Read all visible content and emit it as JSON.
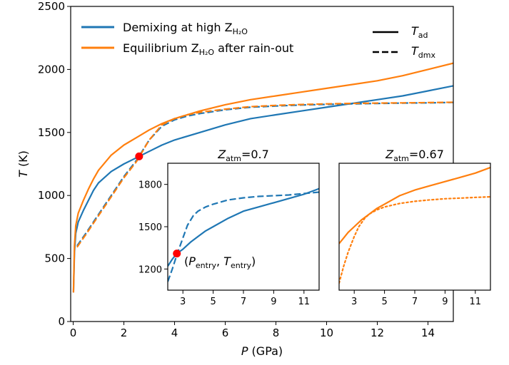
{
  "colors": {
    "blue": "#1f77b4",
    "orange": "#ff7f0e",
    "marker": "#ff0000",
    "black": "#000000"
  },
  "legend_left": [
    {
      "label": "Demixing at high Z",
      "sub": "H₂O",
      "color": "#1f77b4"
    },
    {
      "label": "Equilibrium Z",
      "sub": "H₂O",
      "suffix": " after rain-out",
      "color": "#ff7f0e"
    }
  ],
  "legend_right": [
    {
      "label": "T",
      "sub": "ad",
      "style": "solid"
    },
    {
      "label": "T",
      "sub": "dmx",
      "style": "dashed"
    }
  ],
  "chart_data": [
    {
      "type": "line",
      "xlabel": "P (GPa)",
      "xlabel_italic": "P",
      "xlabel_unit": " (GPa)",
      "ylabel": "T (K)",
      "ylabel_italic": "T",
      "ylabel_unit": " (K)",
      "xlim": [
        -0.1,
        15
      ],
      "ylim": [
        0,
        2500
      ],
      "xticks": [
        0,
        2,
        4,
        6,
        8,
        10,
        12,
        14
      ],
      "yticks": [
        0,
        500,
        1000,
        1500,
        2000,
        2500
      ],
      "series": [
        {
          "name": "Demixing at high Z_H2O (T_ad)",
          "color": "#1f77b4",
          "style": "solid",
          "x": [
            0.01,
            0.05,
            0.1,
            0.2,
            0.4,
            0.6,
            0.8,
            1.0,
            1.5,
            2.0,
            2.5,
            3.0,
            3.5,
            4.0,
            5.0,
            6.0,
            7.0,
            8.0,
            9.0,
            10.0,
            11.0,
            12.0,
            13.0,
            14.0,
            15.0
          ],
          "y": [
            230,
            550,
            700,
            790,
            880,
            960,
            1040,
            1100,
            1190,
            1250,
            1300,
            1350,
            1400,
            1440,
            1500,
            1560,
            1610,
            1640,
            1670,
            1700,
            1730,
            1760,
            1790,
            1830,
            1870
          ]
        },
        {
          "name": "Demixing at high Z_H2O (T_dmx)",
          "color": "#1f77b4",
          "style": "dashed",
          "x": [
            0.15,
            0.5,
            1.0,
            1.5,
            2.0,
            2.5,
            3.0,
            3.5,
            4.0,
            4.5,
            5.0,
            6.0,
            7.0,
            8.0,
            9.0,
            10.0,
            11.0,
            12.0,
            13.0,
            14.0,
            15.0
          ],
          "y": [
            600,
            700,
            850,
            1000,
            1150,
            1280,
            1440,
            1550,
            1600,
            1630,
            1650,
            1680,
            1700,
            1710,
            1718,
            1723,
            1727,
            1730,
            1733,
            1735,
            1738
          ]
        },
        {
          "name": "Equilibrium Z_H2O after rain-out (T_ad)",
          "color": "#ff7f0e",
          "style": "solid",
          "x": [
            0.01,
            0.05,
            0.1,
            0.2,
            0.4,
            0.6,
            0.8,
            1.0,
            1.5,
            2.0,
            2.5,
            3.0,
            3.5,
            4.0,
            5.0,
            6.0,
            7.0,
            8.0,
            9.0,
            10.0,
            11.0,
            12.0,
            13.0,
            14.0,
            15.0
          ],
          "y": [
            230,
            600,
            760,
            860,
            960,
            1050,
            1130,
            1200,
            1320,
            1400,
            1460,
            1520,
            1570,
            1610,
            1670,
            1720,
            1760,
            1790,
            1820,
            1850,
            1880,
            1910,
            1950,
            2000,
            2050
          ]
        },
        {
          "name": "Equilibrium Z_H2O after rain-out (T_dmx)",
          "color": "#ff7f0e",
          "style": "dashed",
          "x": [
            0.15,
            0.5,
            1.0,
            1.5,
            2.0,
            2.5,
            3.0,
            3.5,
            4.0,
            4.5,
            5.0,
            6.0,
            7.0,
            8.0,
            9.0,
            10.0,
            11.0,
            12.0,
            13.0,
            14.0,
            15.0
          ],
          "y": [
            590,
            690,
            840,
            990,
            1140,
            1270,
            1440,
            1560,
            1610,
            1640,
            1660,
            1685,
            1705,
            1715,
            1722,
            1727,
            1730,
            1733,
            1735,
            1737,
            1740
          ]
        }
      ],
      "marker": {
        "x": 2.6,
        "y": 1310,
        "color": "#ff0000"
      }
    },
    {
      "type": "line",
      "title_italic": "Z",
      "title_sub": "atm",
      "title_value": "=0.7",
      "xlim": [
        2,
        12
      ],
      "ylim": [
        1050,
        1950
      ],
      "xticks": [
        3,
        5,
        7,
        9,
        11
      ],
      "yticks": [
        1200,
        1500,
        1800
      ],
      "series": [
        {
          "name": "T_ad",
          "color": "#1f77b4",
          "style": "solid",
          "x": [
            2.0,
            2.3,
            2.6,
            3.0,
            3.5,
            4.0,
            4.5,
            5.0,
            6.0,
            7.0,
            8.0,
            9.0,
            10.0,
            11.0,
            12.0
          ],
          "y": [
            1220,
            1270,
            1310,
            1340,
            1390,
            1430,
            1470,
            1500,
            1560,
            1610,
            1640,
            1670,
            1700,
            1730,
            1770
          ]
        },
        {
          "name": "T_dmx",
          "color": "#1f77b4",
          "style": "dashed",
          "x": [
            2.0,
            2.3,
            2.6,
            3.0,
            3.3,
            3.7,
            4.0,
            4.5,
            5.0,
            6.0,
            7.0,
            8.0,
            9.0,
            10.0,
            11.0,
            12.0
          ],
          "y": [
            1110,
            1200,
            1300,
            1420,
            1510,
            1580,
            1610,
            1640,
            1660,
            1690,
            1705,
            1715,
            1720,
            1725,
            1735,
            1745
          ]
        }
      ],
      "marker": {
        "x": 2.6,
        "y": 1310,
        "color": "#ff0000"
      },
      "annotation": {
        "p": "P",
        "p_sub": "entry",
        "t": "T",
        "t_sub": "entry"
      }
    },
    {
      "type": "line",
      "title_italic": "Z",
      "title_sub": "atm",
      "title_value": "=0.67",
      "xlim": [
        2,
        12
      ],
      "ylim": [
        1050,
        1950
      ],
      "xticks": [
        3,
        5,
        7,
        9,
        11
      ],
      "yticks": [],
      "series": [
        {
          "name": "T_ad",
          "color": "#ff7f0e",
          "style": "solid",
          "x": [
            2.0,
            2.3,
            2.6,
            3.0,
            3.5,
            4.0,
            4.5,
            5.0,
            6.0,
            7.0,
            8.0,
            9.0,
            10.0,
            11.0,
            12.0
          ],
          "y": [
            1380,
            1420,
            1460,
            1500,
            1550,
            1590,
            1630,
            1660,
            1720,
            1760,
            1790,
            1820,
            1850,
            1880,
            1920
          ]
        },
        {
          "name": "T_dmx",
          "color": "#ff7f0e",
          "style": "dotted",
          "x": [
            2.0,
            2.3,
            2.6,
            3.0,
            3.3,
            3.7,
            4.0,
            4.5,
            5.0,
            6.0,
            7.0,
            8.0,
            9.0,
            10.0,
            11.0,
            12.0
          ],
          "y": [
            1100,
            1220,
            1320,
            1430,
            1500,
            1560,
            1590,
            1620,
            1640,
            1665,
            1680,
            1690,
            1698,
            1703,
            1708,
            1712
          ]
        }
      ]
    }
  ]
}
